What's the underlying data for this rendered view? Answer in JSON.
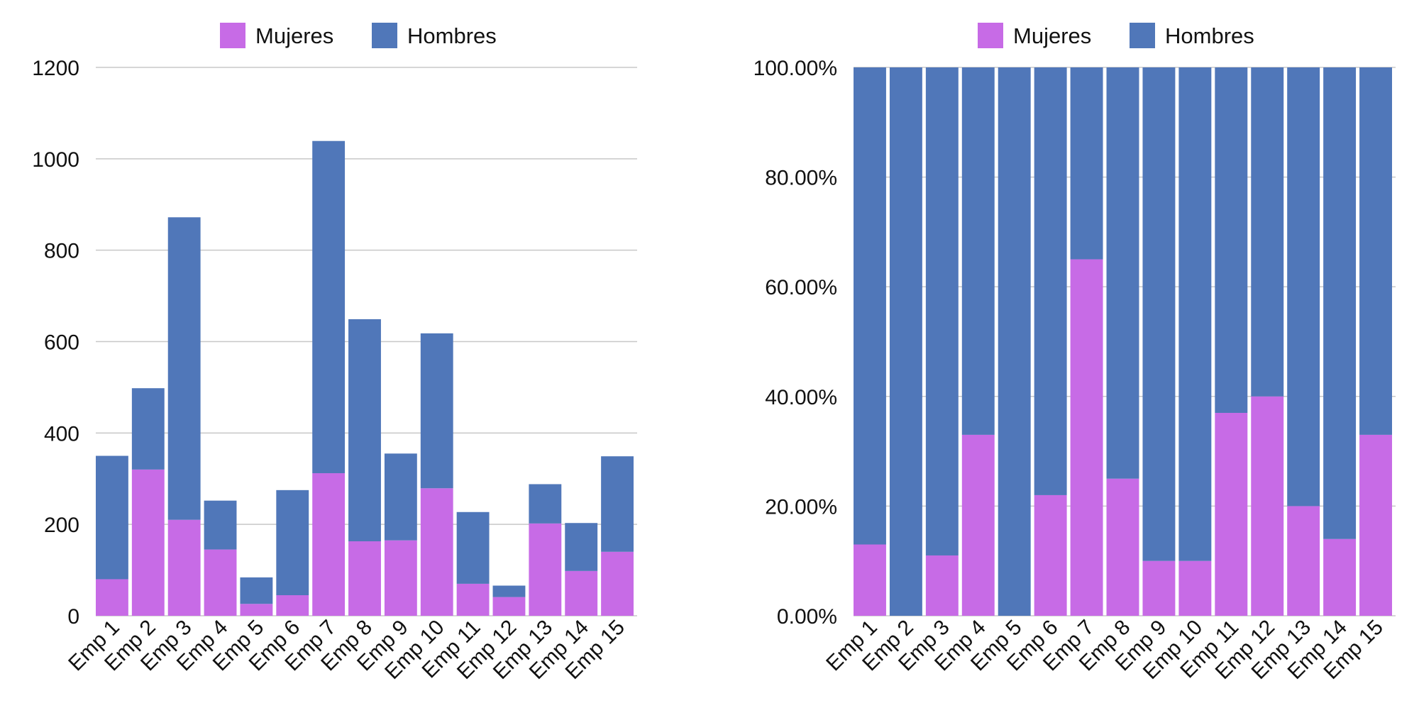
{
  "colors": {
    "mujeres": "#C76BE6",
    "hombres": "#5077B9"
  },
  "chart_data": [
    {
      "type": "bar",
      "stacked": true,
      "categories": [
        "Emp 1",
        "Emp 2",
        "Emp 3",
        "Emp 4",
        "Emp 5",
        "Emp 6",
        "Emp 7",
        "Emp 8",
        "Emp 9",
        "Emp 10",
        "Emp 11",
        "Emp 12",
        "Emp 13",
        "Emp 14",
        "Emp 15"
      ],
      "series": [
        {
          "name": "Mujeres",
          "color": "#C76BE6",
          "values": [
            80,
            320,
            210,
            145,
            26,
            45,
            312,
            163,
            165,
            279,
            70,
            41,
            202,
            98,
            140
          ]
        },
        {
          "name": "Hombres",
          "color": "#5077B9",
          "values": [
            270,
            178,
            662,
            107,
            58,
            230,
            727,
            486,
            190,
            339,
            157,
            25,
            86,
            105,
            209
          ]
        }
      ],
      "ylim": [
        0,
        1200
      ],
      "yticks": [
        "0",
        "200",
        "400",
        "600",
        "800",
        "1000",
        "1200"
      ],
      "ytick_values": [
        0,
        200,
        400,
        600,
        800,
        1000,
        1200
      ],
      "legend_position": "top",
      "grid": true
    },
    {
      "type": "bar",
      "stacked": true,
      "percent": true,
      "categories": [
        "Emp 1",
        "Emp 2",
        "Emp 3",
        "Emp 4",
        "Emp 5",
        "Emp 6",
        "Emp 7",
        "Emp 8",
        "Emp 9",
        "Emp 10",
        "Emp 11",
        "Emp 12",
        "Emp 13",
        "Emp 14",
        "Emp 15"
      ],
      "series": [
        {
          "name": "Mujeres",
          "color": "#C76BE6",
          "values": [
            13,
            0,
            11,
            33,
            0,
            22,
            65,
            25,
            10,
            10,
            37,
            40,
            20,
            14,
            33
          ]
        },
        {
          "name": "Hombres",
          "color": "#5077B9",
          "values": [
            87,
            100,
            89,
            67,
            100,
            78,
            35,
            75,
            90,
            90,
            63,
            60,
            80,
            86,
            67
          ]
        }
      ],
      "ylim": [
        0,
        100
      ],
      "yticks": [
        "0.00%",
        "20.00%",
        "40.00%",
        "60.00%",
        "80.00%",
        "100.00%"
      ],
      "ytick_values": [
        0,
        20,
        40,
        60,
        80,
        100
      ],
      "legend_position": "top",
      "grid": true
    }
  ]
}
